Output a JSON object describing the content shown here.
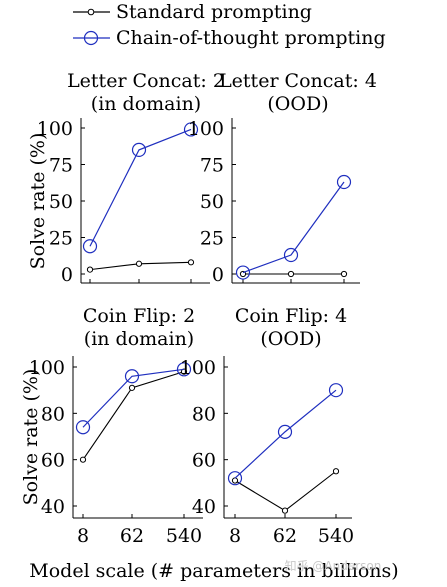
{
  "legend": {
    "items": [
      {
        "label": "Standard prompting",
        "color": "#000000"
      },
      {
        "label": "Chain-of-thought prompting",
        "color": "#1f2fbf"
      }
    ],
    "placement": "top"
  },
  "x_axis_label": "Model scale (# parameters in billions)",
  "watermark": "知乎 @Anderson",
  "chart_data": [
    {
      "type": "line",
      "title": [
        "Letter Concat: 2",
        "(in domain)"
      ],
      "ylabel": "Solve rate (%)",
      "ylim": [
        0,
        100
      ],
      "yticks": [
        0,
        25,
        50,
        75,
        100
      ],
      "categories": [
        "8",
        "62",
        "540"
      ],
      "show_xticks": false,
      "series": [
        {
          "name": "Standard prompting",
          "values": [
            3,
            7,
            8
          ]
        },
        {
          "name": "Chain-of-thought prompting",
          "values": [
            19,
            85,
            99
          ]
        }
      ]
    },
    {
      "type": "line",
      "title": [
        "Letter Concat: 4",
        "(OOD)"
      ],
      "ylabel": "",
      "ylim": [
        0,
        100
      ],
      "yticks": [
        0,
        25,
        50,
        75,
        100
      ],
      "categories": [
        "8",
        "62",
        "540"
      ],
      "show_xticks": false,
      "series": [
        {
          "name": "Standard prompting",
          "values": [
            0,
            0,
            0
          ]
        },
        {
          "name": "Chain-of-thought prompting",
          "values": [
            1,
            13,
            63
          ]
        }
      ]
    },
    {
      "type": "line",
      "title": [
        "Coin Flip: 2",
        "(in domain)"
      ],
      "ylabel": "Solve rate (%)",
      "ylim": [
        40,
        100
      ],
      "yticks": [
        40,
        60,
        80,
        100
      ],
      "categories": [
        "8",
        "62",
        "540"
      ],
      "show_xticks": true,
      "series": [
        {
          "name": "Standard prompting",
          "values": [
            60,
            91,
            98
          ]
        },
        {
          "name": "Chain-of-thought prompting",
          "values": [
            74,
            96,
            99
          ]
        }
      ]
    },
    {
      "type": "line",
      "title": [
        "Coin Flip: 4",
        "(OOD)"
      ],
      "ylabel": "",
      "ylim": [
        40,
        100
      ],
      "yticks": [
        40,
        60,
        80,
        100
      ],
      "categories": [
        "8",
        "62",
        "540"
      ],
      "show_xticks": true,
      "series": [
        {
          "name": "Standard prompting",
          "values": [
            51,
            38,
            55
          ]
        },
        {
          "name": "Chain-of-thought prompting",
          "values": [
            52,
            72,
            90
          ]
        }
      ]
    }
  ]
}
